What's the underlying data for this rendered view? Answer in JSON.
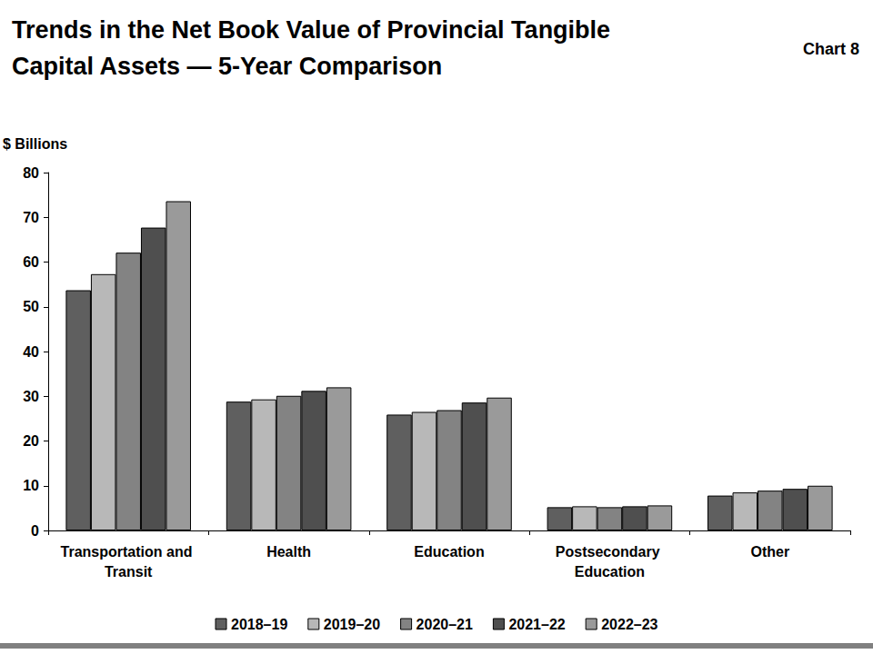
{
  "chart_data": {
    "type": "bar",
    "title": "Trends in the Net Book Value of Provincial Tangible Capital Assets — 5-Year Comparison",
    "annotation": "Chart 8",
    "y_label": "$ Billions",
    "categories": [
      "Transportation and Transit",
      "Health",
      "Education",
      "Postsecondary Education",
      "Other"
    ],
    "series": [
      {
        "name": "2018–19",
        "color": "#5f5f5f",
        "values": [
          53.7,
          28.8,
          25.9,
          5.2,
          7.8
        ]
      },
      {
        "name": "2019–20",
        "color": "#b8b8b8",
        "values": [
          57.3,
          29.3,
          26.5,
          5.4,
          8.5
        ]
      },
      {
        "name": "2020–21",
        "color": "#838383",
        "values": [
          62.1,
          30.1,
          26.9,
          5.2,
          8.9
        ]
      },
      {
        "name": "2021–22",
        "color": "#4f4f4f",
        "values": [
          67.7,
          31.2,
          28.6,
          5.4,
          9.3
        ]
      },
      {
        "name": "2022–23",
        "color": "#9a9a9a",
        "values": [
          73.6,
          32.0,
          29.7,
          5.6,
          10.0
        ]
      }
    ],
    "ylim": [
      0,
      80
    ],
    "yticks": [
      0,
      10,
      20,
      30,
      40,
      50,
      60,
      70,
      80
    ],
    "grid": false,
    "legend": "bottom"
  }
}
